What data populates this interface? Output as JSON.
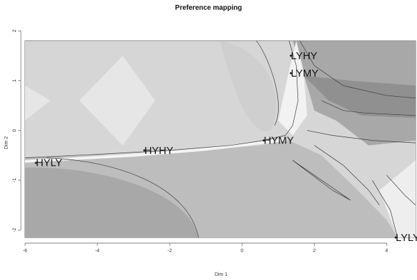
{
  "chart_data": {
    "type": "heatmap",
    "title": "Preference mapping",
    "xlabel": "Dim 1",
    "ylabel": "Dim 2",
    "xlim": [
      -6,
      4.8
    ],
    "ylim": [
      -2.5,
      2.2
    ],
    "x_ticks": [
      -6,
      -4,
      -2,
      0,
      2,
      4
    ],
    "y_ticks": [
      -2,
      -1,
      0,
      1,
      2
    ],
    "grid": false,
    "colors": {
      "light": "#d6d6d6",
      "lighter": "#e6e6e6",
      "mid": "#bdbdbd",
      "dark": "#a8a8a8",
      "darker": "#909090",
      "contour": "#3a3a3a"
    },
    "points": [
      {
        "label": "LYHY",
        "x": 1.35,
        "y": 1.5
      },
      {
        "label": "LYMY",
        "x": 1.35,
        "y": 1.15
      },
      {
        "label": "HYMY",
        "x": 0.6,
        "y": -0.2
      },
      {
        "label": "HYHY",
        "x": -2.7,
        "y": -0.4
      },
      {
        "label": "HYLY",
        "x": -5.7,
        "y": -0.65
      },
      {
        "label": "LYLY",
        "x": 4.25,
        "y": -2.15
      }
    ]
  }
}
